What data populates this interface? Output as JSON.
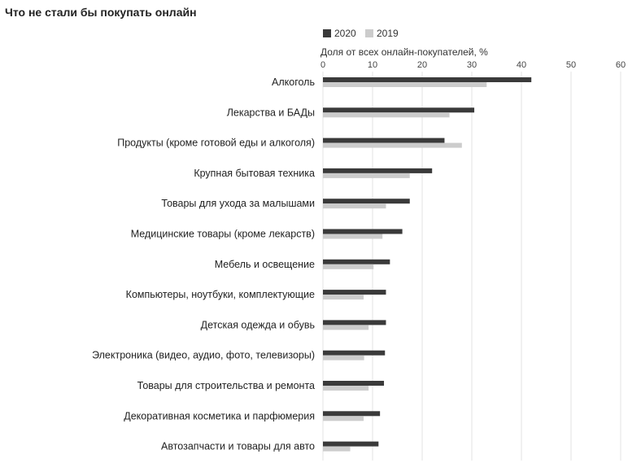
{
  "chart_data": {
    "type": "bar",
    "orientation": "horizontal",
    "title": "Что не стали бы покупать онлайн",
    "xlabel": "Доля от всех онлайн-покупателей, %",
    "ylabel": "",
    "xlim": [
      0,
      60
    ],
    "xticks": [
      0,
      10,
      20,
      30,
      40,
      50,
      60
    ],
    "grid": true,
    "legend": "top",
    "categories": [
      "Алкоголь",
      "Лекарства и БАДы",
      "Продукты (кроме готовой еды и алкоголя)",
      "Крупная бытовая техника",
      "Товары для ухода за малышами",
      "Медицинские товары (кроме лекарств)",
      "Мебель и освещение",
      "Компьютеры, ноутбуки, комплектующие",
      "Детская одежда и обувь",
      "Электроника (видео, аудио, фото, телевизоры)",
      "Товары для строительства и ремонта",
      "Декоративная косметика и парфюмерия",
      "Автозапчасти и товары для авто"
    ],
    "series": [
      {
        "name": "2020",
        "color": "#3a3a3a",
        "values": [
          42,
          30.5,
          24.5,
          22,
          17.5,
          16,
          13.5,
          12.7,
          12.7,
          12.5,
          12.3,
          11.5,
          11.2
        ]
      },
      {
        "name": "2019",
        "color": "#cccccc",
        "values": [
          33,
          25.5,
          28,
          17.5,
          12.7,
          12,
          10.2,
          8.2,
          9.2,
          8.3,
          9.2,
          8.2,
          5.5
        ]
      }
    ]
  }
}
